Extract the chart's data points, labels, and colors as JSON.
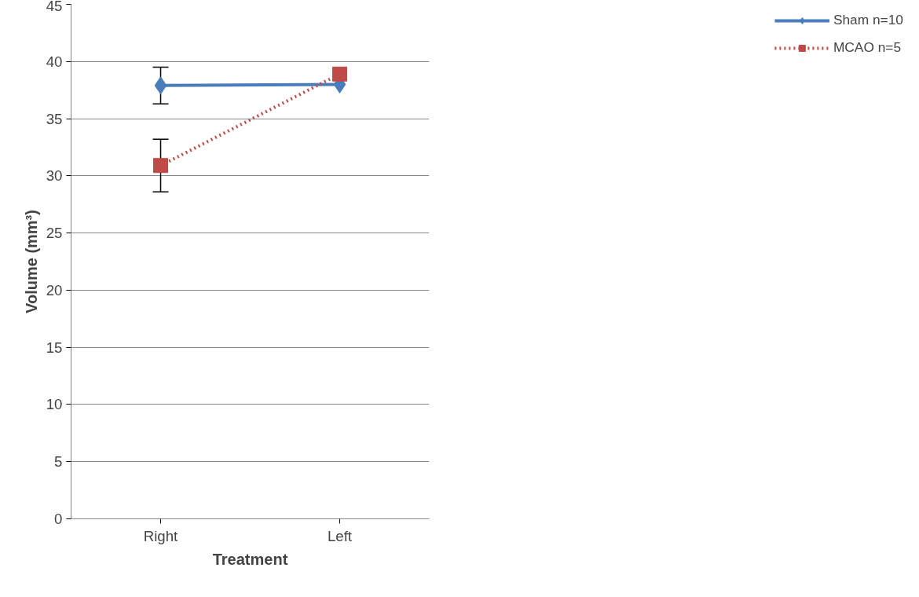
{
  "chart_data": {
    "type": "line",
    "xlabel": "Treatment",
    "ylabel": "Volume (mm³)",
    "categories": [
      "Right",
      "Left"
    ],
    "ylim": [
      0,
      45
    ],
    "yticks": [
      0,
      5,
      10,
      15,
      20,
      25,
      30,
      35,
      40,
      45
    ],
    "grid": "y",
    "legend": "right",
    "series": [
      {
        "name": "Sham n=10",
        "color": "#4a7ebb",
        "values": [
          37.9,
          38.0
        ],
        "errors": [
          1.6,
          null
        ],
        "marker": "diamond",
        "line_style": "solid"
      },
      {
        "name": "MCAO n=5",
        "color": "#be4b48",
        "values": [
          30.9,
          38.9
        ],
        "errors": [
          2.3,
          null
        ],
        "marker": "square",
        "line_style": "dotted"
      }
    ]
  }
}
